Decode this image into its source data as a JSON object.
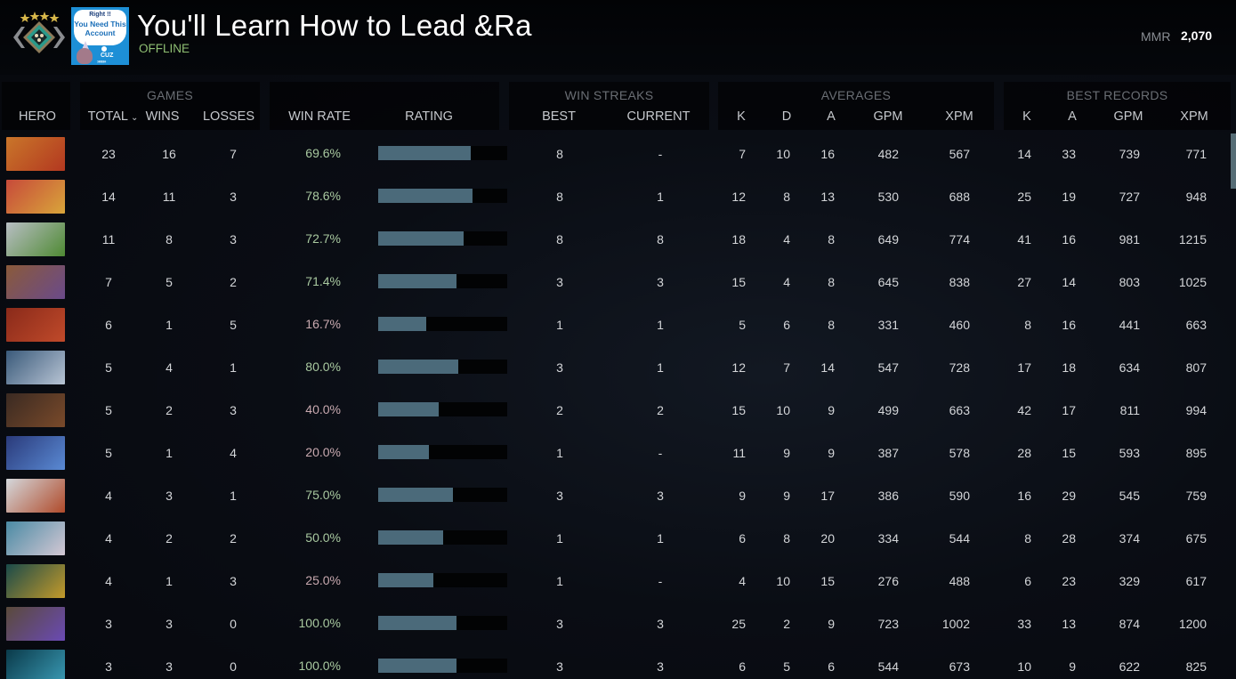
{
  "header": {
    "player_name": "You'll Learn How to Lead &Ra",
    "status": "OFFLINE",
    "mmr_label": "MMR",
    "mmr_value": "2,070",
    "avatar": {
      "line1": "Right !!",
      "line2": "You Need This",
      "line3": "Account",
      "tag": "CUZ",
      "arrows": "»»»»"
    },
    "rank_badge_icon": "rank-medal-4-stars"
  },
  "table": {
    "groups": {
      "games": "GAMES",
      "win_streaks": "WIN STREAKS",
      "averages": "AVERAGES",
      "best_records": "BEST RECORDS"
    },
    "columns": {
      "hero": "HERO",
      "total": "TOTAL",
      "wins": "WINS",
      "losses": "LOSSES",
      "win_rate": "WIN RATE",
      "rating": "RATING",
      "streak_best": "BEST",
      "streak_current": "CURRENT",
      "avg_k": "K",
      "avg_d": "D",
      "avg_a": "A",
      "avg_gpm": "GPM",
      "avg_xpm": "XPM",
      "best_k": "K",
      "best_a": "A",
      "best_gpm": "GPM",
      "best_xpm": "XPM"
    },
    "sort_indicator": "⌄",
    "colors": {
      "winrate_good": "#a9c9a0",
      "winrate_bad": "#c9aab0",
      "rating_fill": "#4b6a7a",
      "status_offline": "#8fbf73"
    },
    "rows": [
      {
        "hero_colors": [
          "#c9762a",
          "#b33820"
        ],
        "total": "23",
        "wins": "16",
        "losses": "7",
        "win_rate": "69.6%",
        "good": true,
        "rating_pct": 72,
        "streak_best": "8",
        "streak_current": "-",
        "avg_k": "7",
        "avg_d": "10",
        "avg_a": "16",
        "avg_gpm": "482",
        "avg_xpm": "567",
        "best_k": "14",
        "best_a": "33",
        "best_gpm": "739",
        "best_xpm": "771"
      },
      {
        "hero_colors": [
          "#c74a3a",
          "#d9a53a"
        ],
        "total": "14",
        "wins": "11",
        "losses": "3",
        "win_rate": "78.6%",
        "good": true,
        "rating_pct": 73,
        "streak_best": "8",
        "streak_current": "1",
        "avg_k": "12",
        "avg_d": "8",
        "avg_a": "13",
        "avg_gpm": "530",
        "avg_xpm": "688",
        "best_k": "25",
        "best_a": "19",
        "best_gpm": "727",
        "best_xpm": "948"
      },
      {
        "hero_colors": [
          "#b8bec4",
          "#4f8a33"
        ],
        "total": "11",
        "wins": "8",
        "losses": "3",
        "win_rate": "72.7%",
        "good": true,
        "rating_pct": 66,
        "streak_best": "8",
        "streak_current": "8",
        "avg_k": "18",
        "avg_d": "4",
        "avg_a": "8",
        "avg_gpm": "649",
        "avg_xpm": "774",
        "best_k": "41",
        "best_a": "16",
        "best_gpm": "981",
        "best_xpm": "1215"
      },
      {
        "hero_colors": [
          "#8a5a3a",
          "#6a4a8a"
        ],
        "total": "7",
        "wins": "5",
        "losses": "2",
        "win_rate": "71.4%",
        "good": true,
        "rating_pct": 61,
        "streak_best": "3",
        "streak_current": "3",
        "avg_k": "15",
        "avg_d": "4",
        "avg_a": "8",
        "avg_gpm": "645",
        "avg_xpm": "838",
        "best_k": "27",
        "best_a": "14",
        "best_gpm": "803",
        "best_xpm": "1025"
      },
      {
        "hero_colors": [
          "#8a2a1a",
          "#c04a2a"
        ],
        "total": "6",
        "wins": "1",
        "losses": "5",
        "win_rate": "16.7%",
        "good": false,
        "rating_pct": 37,
        "streak_best": "1",
        "streak_current": "1",
        "avg_k": "5",
        "avg_d": "6",
        "avg_a": "8",
        "avg_gpm": "331",
        "avg_xpm": "460",
        "best_k": "8",
        "best_a": "16",
        "best_gpm": "441",
        "best_xpm": "663"
      },
      {
        "hero_colors": [
          "#3a5a7a",
          "#b8c4d4"
        ],
        "total": "5",
        "wins": "4",
        "losses": "1",
        "win_rate": "80.0%",
        "good": true,
        "rating_pct": 62,
        "streak_best": "3",
        "streak_current": "1",
        "avg_k": "12",
        "avg_d": "7",
        "avg_a": "14",
        "avg_gpm": "547",
        "avg_xpm": "728",
        "best_k": "17",
        "best_a": "18",
        "best_gpm": "634",
        "best_xpm": "807"
      },
      {
        "hero_colors": [
          "#3a2a22",
          "#7a4a2a"
        ],
        "total": "5",
        "wins": "2",
        "losses": "3",
        "win_rate": "40.0%",
        "good": false,
        "rating_pct": 47,
        "streak_best": "2",
        "streak_current": "2",
        "avg_k": "15",
        "avg_d": "10",
        "avg_a": "9",
        "avg_gpm": "499",
        "avg_xpm": "663",
        "best_k": "42",
        "best_a": "17",
        "best_gpm": "811",
        "best_xpm": "994"
      },
      {
        "hero_colors": [
          "#2a3a7a",
          "#5a8ad4"
        ],
        "total": "5",
        "wins": "1",
        "losses": "4",
        "win_rate": "20.0%",
        "good": false,
        "rating_pct": 39,
        "streak_best": "1",
        "streak_current": "-",
        "avg_k": "11",
        "avg_d": "9",
        "avg_a": "9",
        "avg_gpm": "387",
        "avg_xpm": "578",
        "best_k": "28",
        "best_a": "15",
        "best_gpm": "593",
        "best_xpm": "895"
      },
      {
        "hero_colors": [
          "#d4d8dc",
          "#b04a2a"
        ],
        "total": "4",
        "wins": "3",
        "losses": "1",
        "win_rate": "75.0%",
        "good": true,
        "rating_pct": 58,
        "streak_best": "3",
        "streak_current": "3",
        "avg_k": "9",
        "avg_d": "9",
        "avg_a": "17",
        "avg_gpm": "386",
        "avg_xpm": "590",
        "best_k": "16",
        "best_a": "29",
        "best_gpm": "545",
        "best_xpm": "759"
      },
      {
        "hero_colors": [
          "#4a8aa4",
          "#d4c8d4"
        ],
        "total": "4",
        "wins": "2",
        "losses": "2",
        "win_rate": "50.0%",
        "good": true,
        "rating_pct": 50,
        "streak_best": "1",
        "streak_current": "1",
        "avg_k": "6",
        "avg_d": "8",
        "avg_a": "20",
        "avg_gpm": "334",
        "avg_xpm": "544",
        "best_k": "8",
        "best_a": "28",
        "best_gpm": "374",
        "best_xpm": "675"
      },
      {
        "hero_colors": [
          "#1a4a4a",
          "#c49a2a"
        ],
        "total": "4",
        "wins": "1",
        "losses": "3",
        "win_rate": "25.0%",
        "good": false,
        "rating_pct": 43,
        "streak_best": "1",
        "streak_current": "-",
        "avg_k": "4",
        "avg_d": "10",
        "avg_a": "15",
        "avg_gpm": "276",
        "avg_xpm": "488",
        "best_k": "6",
        "best_a": "23",
        "best_gpm": "329",
        "best_xpm": "617"
      },
      {
        "hero_colors": [
          "#5a4a3a",
          "#6a4ab4"
        ],
        "total": "3",
        "wins": "3",
        "losses": "0",
        "win_rate": "100.0%",
        "good": true,
        "rating_pct": 61,
        "streak_best": "3",
        "streak_current": "3",
        "avg_k": "25",
        "avg_d": "2",
        "avg_a": "9",
        "avg_gpm": "723",
        "avg_xpm": "1002",
        "best_k": "33",
        "best_a": "13",
        "best_gpm": "874",
        "best_xpm": "1200"
      },
      {
        "hero_colors": [
          "#0a3a4a",
          "#3a9ab4"
        ],
        "total": "3",
        "wins": "3",
        "losses": "0",
        "win_rate": "100.0%",
        "good": true,
        "rating_pct": 61,
        "streak_best": "3",
        "streak_current": "3",
        "avg_k": "6",
        "avg_d": "5",
        "avg_a": "6",
        "avg_gpm": "544",
        "avg_xpm": "673",
        "best_k": "10",
        "best_a": "9",
        "best_gpm": "622",
        "best_xpm": "825"
      }
    ]
  }
}
